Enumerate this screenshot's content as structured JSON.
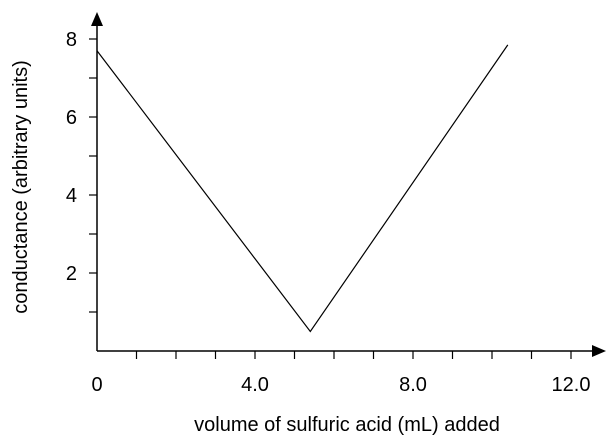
{
  "chart_data": {
    "type": "line",
    "title": "",
    "xlabel": "volume of sulfuric acid (mL) added",
    "ylabel": "conductance (arbitrary units)",
    "xlim": [
      0,
      12.6
    ],
    "ylim": [
      0,
      8.8
    ],
    "x_ticks": [
      0,
      1,
      2,
      3,
      4,
      5,
      6,
      7,
      8,
      9,
      10,
      11,
      12
    ],
    "x_tick_labels": [
      {
        "value": 0,
        "label": "0"
      },
      {
        "value": 4,
        "label": "4.0"
      },
      {
        "value": 8,
        "label": "8.0"
      },
      {
        "value": 12,
        "label": "12.0"
      }
    ],
    "y_ticks": [
      1,
      2,
      3,
      4,
      5,
      6,
      7,
      8
    ],
    "y_tick_labels": [
      {
        "value": 2,
        "label": "2"
      },
      {
        "value": 4,
        "label": "4"
      },
      {
        "value": 6,
        "label": "6"
      },
      {
        "value": 8,
        "label": "8"
      }
    ],
    "series": [
      {
        "x": [
          0,
          5.4,
          10.4
        ],
        "y": [
          7.7,
          0.5,
          7.85
        ]
      }
    ],
    "grid": false,
    "legend": "none",
    "line_color": "#000000"
  }
}
